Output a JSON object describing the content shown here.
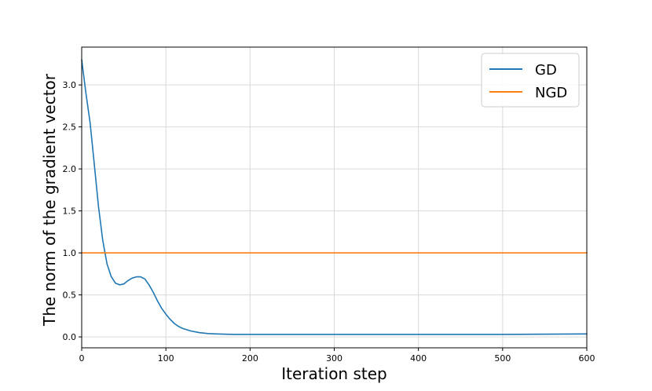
{
  "chart_data": {
    "type": "line",
    "title": "",
    "xlabel": "Iteration step",
    "ylabel": "The norm of the gradient vector",
    "xlim": [
      0,
      600
    ],
    "ylim": [
      -0.13,
      3.45
    ],
    "grid": true,
    "legend_placement": "top-right",
    "x_ticks": [
      0,
      100,
      200,
      300,
      400,
      500,
      600
    ],
    "x_tick_labels": [
      "0",
      "100",
      "200",
      "300",
      "400",
      "500",
      "600"
    ],
    "y_ticks": [
      0.0,
      0.5,
      1.0,
      1.5,
      2.0,
      2.5,
      3.0
    ],
    "y_tick_labels": [
      "0.0",
      "0.5",
      "1.0",
      "1.5",
      "2.0",
      "2.5",
      "3.0"
    ],
    "colors": {
      "GD": "#1f77b4",
      "NGD": "#ff7f0e",
      "grid": "#d9d9d9"
    },
    "series": [
      {
        "name": "GD",
        "x": [
          0,
          5,
          10,
          15,
          20,
          25,
          30,
          35,
          40,
          45,
          50,
          55,
          60,
          65,
          70,
          75,
          80,
          85,
          90,
          95,
          100,
          105,
          110,
          115,
          120,
          130,
          140,
          150,
          160,
          180,
          200,
          250,
          300,
          400,
          500,
          600
        ],
        "y": [
          3.3,
          2.9,
          2.55,
          2.05,
          1.55,
          1.15,
          0.87,
          0.72,
          0.64,
          0.62,
          0.63,
          0.67,
          0.7,
          0.715,
          0.715,
          0.69,
          0.62,
          0.53,
          0.43,
          0.34,
          0.27,
          0.21,
          0.16,
          0.125,
          0.1,
          0.07,
          0.05,
          0.04,
          0.035,
          0.03,
          0.03,
          0.03,
          0.03,
          0.03,
          0.03,
          0.035
        ]
      },
      {
        "name": "NGD",
        "x": [
          0,
          600
        ],
        "y": [
          1.0,
          1.0
        ]
      }
    ]
  }
}
